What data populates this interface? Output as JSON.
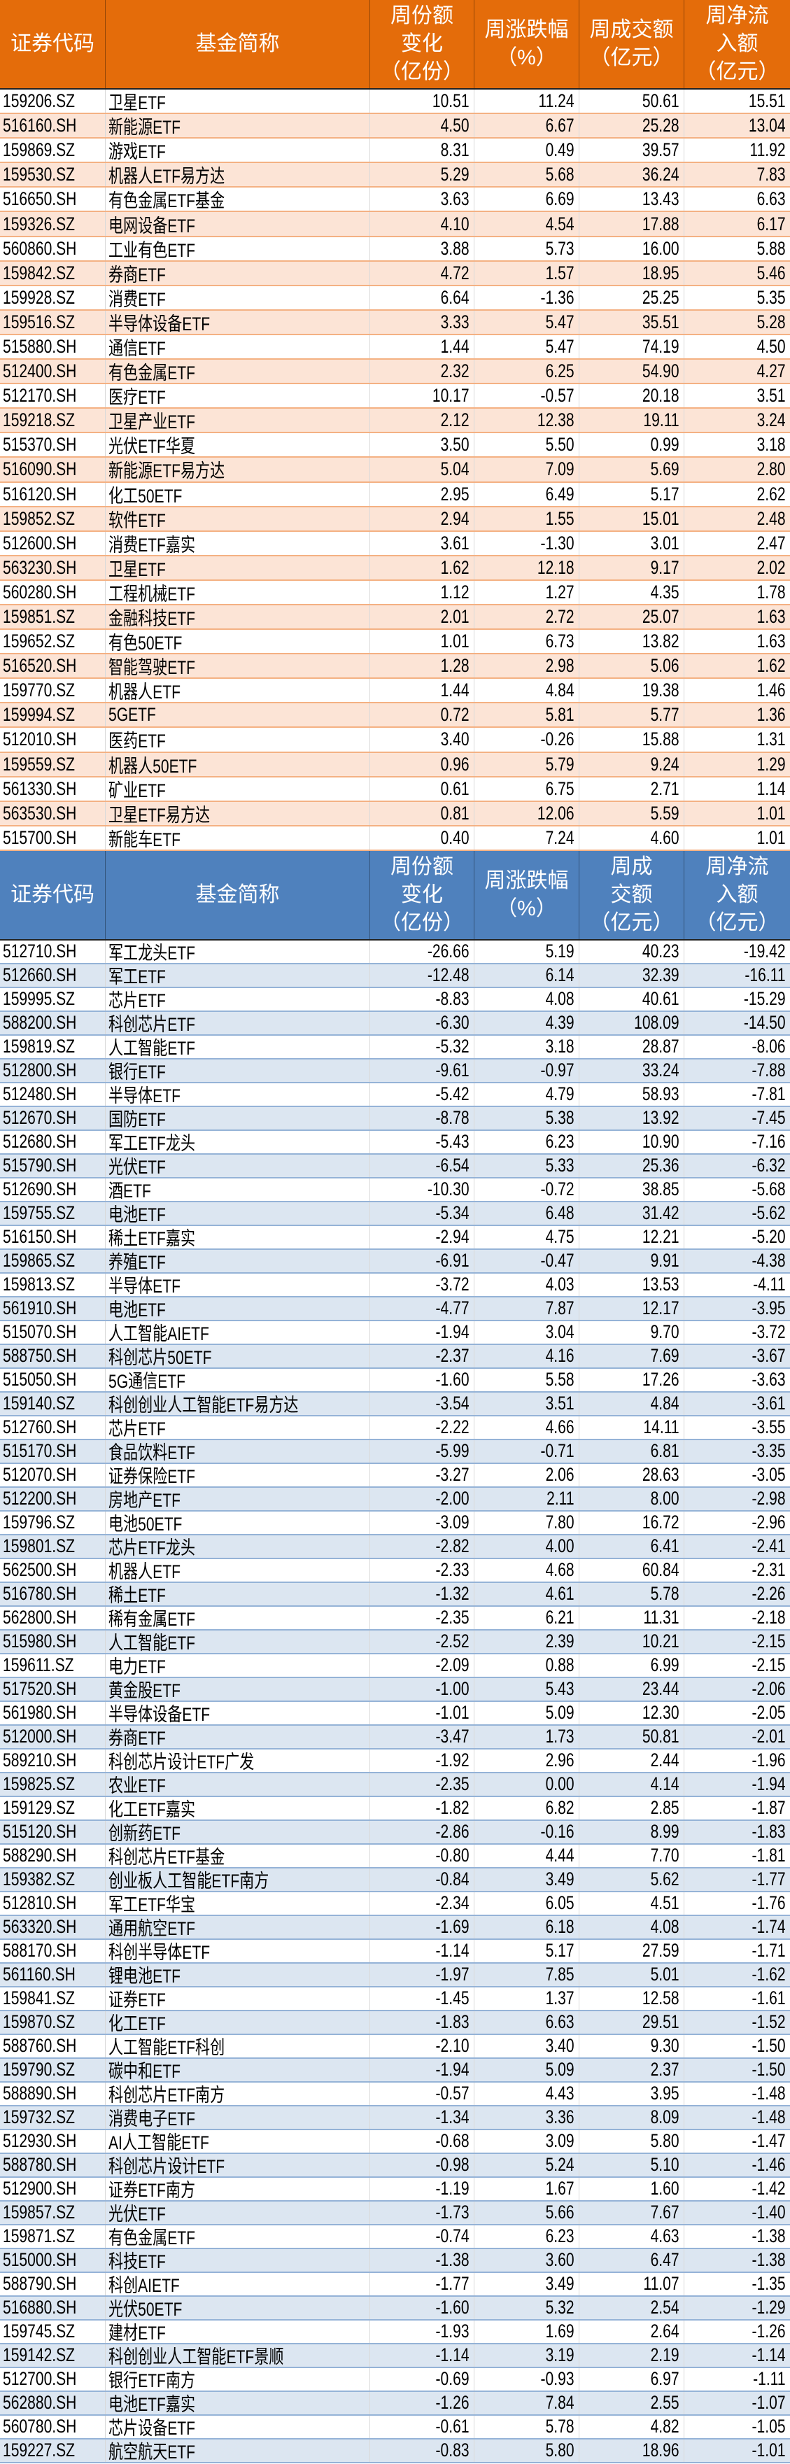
{
  "headers": [
    "证券代码",
    "基金简称",
    "周份额\n变化\n（亿份）",
    "周涨跌幅\n（%）",
    "周成交额\n（亿元）",
    "周净流\n入额\n（亿元）"
  ],
  "headers_bottom": [
    "证券代码",
    "基金简称",
    "周份额\n变化\n（亿份）",
    "周涨跌幅\n（%）",
    "周成\n交额\n（亿元）",
    "周净流\n入额\n（亿元）"
  ],
  "colors": {
    "inflow_header": "#e46c0a",
    "inflow_alt_row": "#fce4d6",
    "outflow_header": "#4f81bd",
    "outflow_alt_row": "#dce6f1"
  },
  "inflow_rows": [
    [
      "159206.SZ",
      "卫星ETF",
      "10.51",
      "11.24",
      "50.61",
      "15.51"
    ],
    [
      "516160.SH",
      "新能源ETF",
      "4.50",
      "6.67",
      "25.28",
      "13.04"
    ],
    [
      "159869.SZ",
      "游戏ETF",
      "8.31",
      "0.49",
      "39.57",
      "11.92"
    ],
    [
      "159530.SZ",
      "机器人ETF易方达",
      "5.29",
      "5.68",
      "36.24",
      "7.83"
    ],
    [
      "516650.SH",
      "有色金属ETF基金",
      "3.63",
      "6.69",
      "13.43",
      "6.63"
    ],
    [
      "159326.SZ",
      "电网设备ETF",
      "4.10",
      "4.54",
      "17.88",
      "6.17"
    ],
    [
      "560860.SH",
      "工业有色ETF",
      "3.88",
      "5.73",
      "16.00",
      "5.88"
    ],
    [
      "159842.SZ",
      "券商ETF",
      "4.72",
      "1.57",
      "18.95",
      "5.46"
    ],
    [
      "159928.SZ",
      "消费ETF",
      "6.64",
      "-1.36",
      "25.25",
      "5.35"
    ],
    [
      "159516.SZ",
      "半导体设备ETF",
      "3.33",
      "5.47",
      "35.51",
      "5.28"
    ],
    [
      "515880.SH",
      "通信ETF",
      "1.44",
      "5.47",
      "74.19",
      "4.50"
    ],
    [
      "512400.SH",
      "有色金属ETF",
      "2.32",
      "6.25",
      "54.90",
      "4.27"
    ],
    [
      "512170.SH",
      "医疗ETF",
      "10.17",
      "-0.57",
      "20.18",
      "3.51"
    ],
    [
      "159218.SZ",
      "卫星产业ETF",
      "2.12",
      "12.38",
      "19.11",
      "3.24"
    ],
    [
      "515370.SH",
      "光伏ETF华夏",
      "3.50",
      "5.50",
      "0.99",
      "3.18"
    ],
    [
      "516090.SH",
      "新能源ETF易方达",
      "5.04",
      "7.09",
      "5.69",
      "2.80"
    ],
    [
      "516120.SH",
      "化工50ETF",
      "2.95",
      "6.49",
      "5.17",
      "2.62"
    ],
    [
      "159852.SZ",
      "软件ETF",
      "2.94",
      "1.55",
      "15.01",
      "2.48"
    ],
    [
      "512600.SH",
      "消费ETF嘉实",
      "3.61",
      "-1.30",
      "3.01",
      "2.47"
    ],
    [
      "563230.SH",
      "卫星ETF",
      "1.62",
      "12.18",
      "9.17",
      "2.02"
    ],
    [
      "560280.SH",
      "工程机械ETF",
      "1.12",
      "1.27",
      "4.35",
      "1.78"
    ],
    [
      "159851.SZ",
      "金融科技ETF",
      "2.01",
      "2.72",
      "25.07",
      "1.63"
    ],
    [
      "159652.SZ",
      "有色50ETF",
      "1.01",
      "6.73",
      "13.82",
      "1.63"
    ],
    [
      "516520.SH",
      "智能驾驶ETF",
      "1.28",
      "2.98",
      "5.06",
      "1.62"
    ],
    [
      "159770.SZ",
      "机器人ETF",
      "1.44",
      "4.84",
      "19.38",
      "1.46"
    ],
    [
      "159994.SZ",
      "5GETF",
      "0.72",
      "5.81",
      "5.77",
      "1.36"
    ],
    [
      "512010.SH",
      "医药ETF",
      "3.40",
      "-0.26",
      "15.88",
      "1.31"
    ],
    [
      "159559.SZ",
      "机器人50ETF",
      "0.96",
      "5.79",
      "9.24",
      "1.29"
    ],
    [
      "561330.SH",
      "矿业ETF",
      "0.61",
      "6.75",
      "2.71",
      "1.14"
    ],
    [
      "563530.SH",
      "卫星ETF易方达",
      "0.81",
      "12.06",
      "5.59",
      "1.01"
    ],
    [
      "515700.SH",
      "新能车ETF",
      "0.40",
      "7.24",
      "4.60",
      "1.01"
    ]
  ],
  "outflow_rows": [
    [
      "512710.SH",
      "军工龙头ETF",
      "-26.66",
      "5.19",
      "40.23",
      "-19.42"
    ],
    [
      "512660.SH",
      "军工ETF",
      "-12.48",
      "6.14",
      "32.39",
      "-16.11"
    ],
    [
      "159995.SZ",
      "芯片ETF",
      "-8.83",
      "4.08",
      "40.61",
      "-15.29"
    ],
    [
      "588200.SH",
      "科创芯片ETF",
      "-6.30",
      "4.39",
      "108.09",
      "-14.50"
    ],
    [
      "159819.SZ",
      "人工智能ETF",
      "-5.32",
      "3.18",
      "28.87",
      "-8.06"
    ],
    [
      "512800.SH",
      "银行ETF",
      "-9.61",
      "-0.97",
      "33.24",
      "-7.88"
    ],
    [
      "512480.SH",
      "半导体ETF",
      "-5.42",
      "4.79",
      "58.93",
      "-7.81"
    ],
    [
      "512670.SH",
      "国防ETF",
      "-8.78",
      "5.38",
      "13.92",
      "-7.45"
    ],
    [
      "512680.SH",
      "军工ETF龙头",
      "-5.43",
      "6.23",
      "10.90",
      "-7.16"
    ],
    [
      "515790.SH",
      "光伏ETF",
      "-6.54",
      "5.33",
      "25.36",
      "-6.32"
    ],
    [
      "512690.SH",
      "酒ETF",
      "-10.30",
      "-0.72",
      "38.85",
      "-5.68"
    ],
    [
      "159755.SZ",
      "电池ETF",
      "-5.34",
      "6.48",
      "31.42",
      "-5.62"
    ],
    [
      "516150.SH",
      "稀土ETF嘉实",
      "-2.94",
      "4.75",
      "12.21",
      "-5.20"
    ],
    [
      "159865.SZ",
      "养殖ETF",
      "-6.91",
      "-0.47",
      "9.91",
      "-4.38"
    ],
    [
      "159813.SZ",
      "半导体ETF",
      "-3.72",
      "4.03",
      "13.53",
      "-4.11"
    ],
    [
      "561910.SH",
      "电池ETF",
      "-4.77",
      "7.87",
      "12.17",
      "-3.95"
    ],
    [
      "515070.SH",
      "人工智能AIETF",
      "-1.94",
      "3.04",
      "9.70",
      "-3.72"
    ],
    [
      "588750.SH",
      "科创芯片50ETF",
      "-2.37",
      "4.16",
      "7.69",
      "-3.67"
    ],
    [
      "515050.SH",
      "5G通信ETF",
      "-1.60",
      "5.58",
      "17.26",
      "-3.63"
    ],
    [
      "159140.SZ",
      "科创创业人工智能ETF易方达",
      "-3.54",
      "3.51",
      "4.84",
      "-3.61"
    ],
    [
      "512760.SH",
      "芯片ETF",
      "-2.22",
      "4.66",
      "14.11",
      "-3.55"
    ],
    [
      "515170.SH",
      "食品饮料ETF",
      "-5.99",
      "-0.71",
      "6.81",
      "-3.35"
    ],
    [
      "512070.SH",
      "证券保险ETF",
      "-3.27",
      "2.06",
      "28.63",
      "-3.05"
    ],
    [
      "512200.SH",
      "房地产ETF",
      "-2.00",
      "2.11",
      "8.00",
      "-2.98"
    ],
    [
      "159796.SZ",
      "电池50ETF",
      "-3.09",
      "7.80",
      "16.72",
      "-2.96"
    ],
    [
      "159801.SZ",
      "芯片ETF龙头",
      "-2.82",
      "4.00",
      "6.41",
      "-2.41"
    ],
    [
      "562500.SH",
      "机器人ETF",
      "-2.33",
      "4.68",
      "60.84",
      "-2.31"
    ],
    [
      "516780.SH",
      "稀土ETF",
      "-1.32",
      "4.61",
      "5.78",
      "-2.26"
    ],
    [
      "562800.SH",
      "稀有金属ETF",
      "-2.35",
      "6.21",
      "11.31",
      "-2.18"
    ],
    [
      "515980.SH",
      "人工智能ETF",
      "-2.52",
      "2.39",
      "10.21",
      "-2.15"
    ],
    [
      "159611.SZ",
      "电力ETF",
      "-2.09",
      "0.88",
      "6.99",
      "-2.15"
    ],
    [
      "517520.SH",
      "黄金股ETF",
      "-1.00",
      "5.43",
      "23.44",
      "-2.06"
    ],
    [
      "561980.SH",
      "半导体设备ETF",
      "-1.01",
      "5.09",
      "12.30",
      "-2.05"
    ],
    [
      "512000.SH",
      "券商ETF",
      "-3.47",
      "1.73",
      "50.81",
      "-2.01"
    ],
    [
      "589210.SH",
      "科创芯片设计ETF广发",
      "-1.92",
      "2.96",
      "2.44",
      "-1.96"
    ],
    [
      "159825.SZ",
      "农业ETF",
      "-2.35",
      "0.00",
      "4.14",
      "-1.94"
    ],
    [
      "159129.SZ",
      "化工ETF嘉实",
      "-1.82",
      "6.82",
      "2.85",
      "-1.87"
    ],
    [
      "515120.SH",
      "创新药ETF",
      "-2.86",
      "-0.16",
      "8.99",
      "-1.83"
    ],
    [
      "588290.SH",
      "科创芯片ETF基金",
      "-0.80",
      "4.44",
      "7.70",
      "-1.81"
    ],
    [
      "159382.SZ",
      "创业板人工智能ETF南方",
      "-0.84",
      "3.49",
      "5.62",
      "-1.77"
    ],
    [
      "512810.SH",
      "军工ETF华宝",
      "-2.34",
      "6.05",
      "4.51",
      "-1.76"
    ],
    [
      "563320.SH",
      "通用航空ETF",
      "-1.69",
      "6.18",
      "4.08",
      "-1.74"
    ],
    [
      "588170.SH",
      "科创半导体ETF",
      "-1.14",
      "5.17",
      "27.59",
      "-1.71"
    ],
    [
      "561160.SH",
      "锂电池ETF",
      "-1.97",
      "7.85",
      "5.01",
      "-1.62"
    ],
    [
      "159841.SZ",
      "证券ETF",
      "-1.45",
      "1.37",
      "12.58",
      "-1.61"
    ],
    [
      "159870.SZ",
      "化工ETF",
      "-1.83",
      "6.63",
      "29.51",
      "-1.52"
    ],
    [
      "588760.SH",
      "人工智能ETF科创",
      "-2.10",
      "3.40",
      "9.30",
      "-1.50"
    ],
    [
      "159790.SZ",
      "碳中和ETF",
      "-1.94",
      "5.09",
      "2.37",
      "-1.50"
    ],
    [
      "588890.SH",
      "科创芯片ETF南方",
      "-0.57",
      "4.43",
      "3.95",
      "-1.48"
    ],
    [
      "159732.SZ",
      "消费电子ETF",
      "-1.34",
      "3.36",
      "8.09",
      "-1.48"
    ],
    [
      "512930.SH",
      "AI人工智能ETF",
      "-0.68",
      "3.09",
      "5.80",
      "-1.47"
    ],
    [
      "588780.SH",
      "科创芯片设计ETF",
      "-0.98",
      "5.24",
      "5.10",
      "-1.46"
    ],
    [
      "512900.SH",
      "证券ETF南方",
      "-1.19",
      "1.67",
      "1.60",
      "-1.42"
    ],
    [
      "159857.SZ",
      "光伏ETF",
      "-1.73",
      "5.66",
      "7.67",
      "-1.40"
    ],
    [
      "159871.SZ",
      "有色金属ETF",
      "-0.74",
      "6.23",
      "4.63",
      "-1.38"
    ],
    [
      "515000.SH",
      "科技ETF",
      "-1.38",
      "3.60",
      "6.47",
      "-1.38"
    ],
    [
      "588790.SH",
      "科创AIETF",
      "-1.77",
      "3.49",
      "11.07",
      "-1.35"
    ],
    [
      "516880.SH",
      "光伏50ETF",
      "-1.60",
      "5.32",
      "2.54",
      "-1.29"
    ],
    [
      "159745.SZ",
      "建材ETF",
      "-1.93",
      "1.69",
      "2.64",
      "-1.26"
    ],
    [
      "159142.SZ",
      "科创创业人工智能ETF景顺",
      "-1.14",
      "3.19",
      "2.19",
      "-1.14"
    ],
    [
      "512700.SH",
      "银行ETF南方",
      "-0.69",
      "-0.93",
      "6.97",
      "-1.11"
    ],
    [
      "562880.SH",
      "电池ETF嘉实",
      "-1.26",
      "7.84",
      "2.55",
      "-1.07"
    ],
    [
      "560780.SH",
      "芯片设备ETF",
      "-0.61",
      "5.78",
      "4.82",
      "-1.05"
    ],
    [
      "159227.SZ",
      "航空航天ETF",
      "-0.83",
      "5.80",
      "18.96",
      "-1.01"
    ]
  ]
}
